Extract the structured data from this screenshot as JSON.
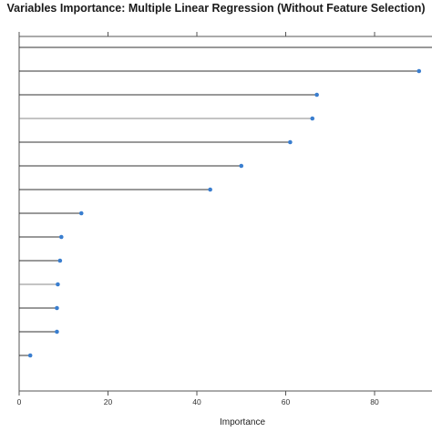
{
  "chart_data": {
    "type": "lollipop",
    "title": "Variables Importance: Multiple Linear Regression (Without Feature Selection)",
    "xlabel": "Importance",
    "ylabel": "",
    "xlim": [
      0,
      90
    ],
    "x_ticks": [
      0,
      20,
      40,
      60,
      80
    ],
    "grid": false,
    "categories": [
      "",
      "",
      "",
      "",
      "",
      "",
      "",
      "",
      "",
      "",
      "",
      "",
      "",
      "",
      ""
    ],
    "values": [
      100,
      90,
      67,
      66,
      61,
      50,
      43,
      14,
      9.5,
      9.2,
      8.7,
      8.5,
      8.5,
      2.5,
      0
    ],
    "colors": {
      "point": "#3a7ecf",
      "stem": "#333333",
      "frame": "#555555",
      "text": "#222222"
    }
  }
}
